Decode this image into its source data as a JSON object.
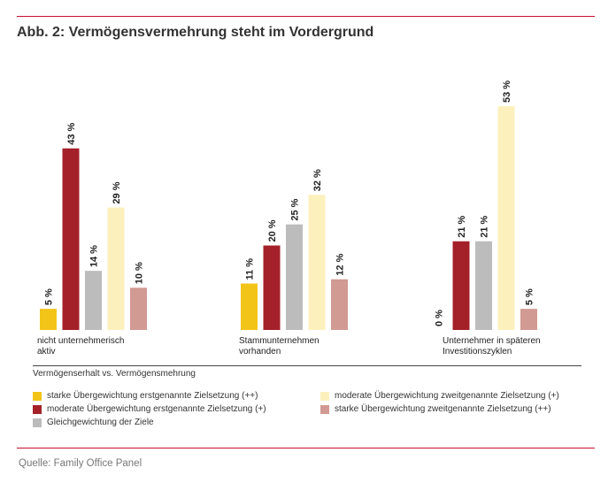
{
  "title": "Abb. 2: Vermögensvermehrung steht im Vordergrund",
  "source": "Quelle: Family Office Panel",
  "chart_data": {
    "type": "bar",
    "title": "Abb. 2: Vermögensvermehrung steht im Vordergrund",
    "xlabel": "Vermögenserhalt vs. Vermögensmehrung",
    "ylabel": "",
    "ylim": [
      0,
      55
    ],
    "unit": "%",
    "categories": [
      [
        "nicht unternehmerisch",
        "aktiv"
      ],
      [
        "Stammunternehmen",
        "vorhanden"
      ],
      [
        "Unternehmer in späteren",
        "Investitionszyklen"
      ]
    ],
    "series": [
      {
        "name": "starke Übergewichtung erstgenannte Zielsetzung (++)",
        "color": "#f2c418",
        "values": [
          5,
          11,
          0
        ],
        "labels": [
          "5 %",
          "11 %",
          "0 %"
        ]
      },
      {
        "name": "moderate Übergewichtung erstgenannte Zielsetzung (+)",
        "color": "#a4212a",
        "values": [
          43,
          20,
          21
        ],
        "labels": [
          "43 %",
          "20 %",
          "21 %"
        ]
      },
      {
        "name": "Gleichgewichtung der Ziele",
        "color": "#bdbcbc",
        "values": [
          14,
          25,
          21
        ],
        "labels": [
          "14 %",
          "25 %",
          "21 %"
        ]
      },
      {
        "name": "moderate Übergewichtung zweitgenannte Zielsetzung (+)",
        "color": "#fcf1bd",
        "values": [
          29,
          32,
          53
        ],
        "labels": [
          "29 %",
          "32 %",
          "53 %"
        ]
      },
      {
        "name": "starke Übergewichtung zweitgenannte Zielsetzung (++)",
        "color": "#d19a92",
        "values": [
          10,
          12,
          5
        ],
        "labels": [
          "10 %",
          "12 %",
          "5 %"
        ]
      }
    ]
  }
}
